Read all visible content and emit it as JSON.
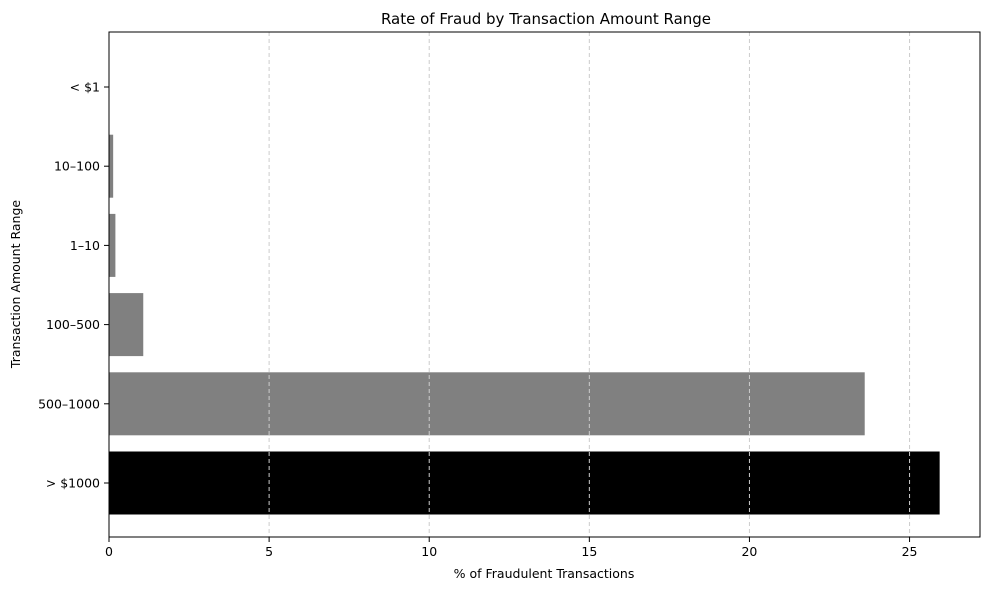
{
  "chart_data": {
    "type": "bar",
    "orientation": "horizontal",
    "title": "Rate of Fraud by Transaction Amount Range",
    "xlabel": "% of Fraudulent Transactions",
    "ylabel": "Transaction Amount Range",
    "categories": [
      "< $1",
      "10–100",
      "1–10",
      "100–500",
      "500–1000",
      "> $1000"
    ],
    "values": [
      0.0,
      0.13,
      0.2,
      1.07,
      23.6,
      25.94
    ],
    "bar_colors": [
      "#808080",
      "#808080",
      "#808080",
      "#808080",
      "#808080",
      "#000000"
    ],
    "xlim": [
      0,
      27.2
    ],
    "xticks": [
      0,
      5,
      10,
      15,
      20,
      25
    ],
    "xtick_labels": [
      "0",
      "5",
      "10",
      "15",
      "20",
      "25"
    ],
    "grid": {
      "axis": "x",
      "style": "dashed",
      "color": "#cccccc"
    },
    "legend": "none"
  }
}
